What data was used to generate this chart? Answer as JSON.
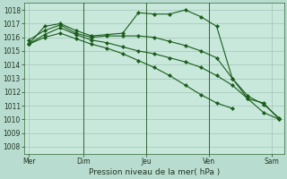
{
  "background_color": "#b8ddd0",
  "plot_bg_color": "#c8e8dc",
  "grid_color": "#99bbaa",
  "line_color": "#1a5c1a",
  "marker_color": "#1a5c1a",
  "title": "Pression niveau de la mer( hPa )",
  "ylim": [
    1007.5,
    1018.5
  ],
  "yticks": [
    1008,
    1009,
    1010,
    1011,
    1012,
    1013,
    1014,
    1015,
    1016,
    1017,
    1018
  ],
  "series1_x": [
    0,
    1,
    2,
    3,
    4,
    5,
    6,
    7,
    8,
    9,
    10,
    11,
    12,
    13,
    14,
    15,
    16
  ],
  "series1": [
    1015.5,
    1016.8,
    1017.0,
    1016.5,
    1016.1,
    1016.2,
    1016.3,
    1017.8,
    1017.7,
    1017.7,
    1018.0,
    1017.5,
    1016.8,
    1013.0,
    1011.5,
    1011.2,
    1010.0
  ],
  "series2_x": [
    0,
    1,
    2,
    3,
    4,
    5,
    6,
    7,
    8,
    9,
    10,
    11,
    12,
    13,
    14,
    15,
    16
  ],
  "series2": [
    1015.8,
    1016.5,
    1016.9,
    1016.3,
    1016.0,
    1016.1,
    1016.1,
    1016.1,
    1016.0,
    1015.7,
    1015.4,
    1015.0,
    1014.5,
    1013.0,
    1011.7,
    1011.1,
    1010.1
  ],
  "series3_x": [
    0,
    1,
    2,
    3,
    4,
    5,
    6,
    7,
    8,
    9,
    10,
    11,
    12,
    13,
    14,
    15,
    16
  ],
  "series3": [
    1015.5,
    1016.2,
    1016.7,
    1016.2,
    1015.8,
    1015.6,
    1015.3,
    1015.0,
    1014.8,
    1014.5,
    1014.2,
    1013.8,
    1013.2,
    1012.5,
    1011.5,
    1010.5,
    1010.0
  ],
  "series4_x": [
    0,
    1,
    2,
    3,
    4,
    5,
    6,
    7,
    8,
    9,
    10,
    11,
    12,
    13
  ],
  "series4": [
    1015.5,
    1016.0,
    1016.3,
    1015.9,
    1015.5,
    1015.2,
    1014.8,
    1014.3,
    1013.8,
    1013.2,
    1012.5,
    1011.8,
    1011.2,
    1010.8
  ],
  "vline_positions": [
    3.5,
    7.5,
    11.5
  ],
  "xtick_positions": [
    0,
    3.5,
    7.5,
    11.5,
    15.5
  ],
  "xtick_labels": [
    "Mer",
    "Dim",
    "Jeu",
    "Ven",
    "Sam"
  ],
  "xlim": [
    -0.3,
    16.3
  ],
  "n_points": 17,
  "title_fontsize": 6.5,
  "tick_fontsize": 5.5,
  "linewidth": 0.8,
  "markersize": 2.2
}
